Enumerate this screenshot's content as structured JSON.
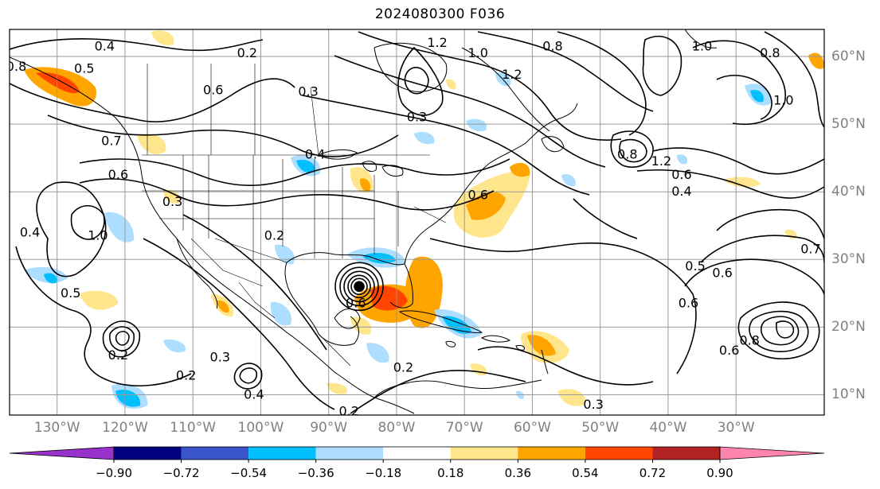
{
  "title": "2024080300 F036",
  "map": {
    "projection": "PlateCarree",
    "lon_range": [
      -137,
      -17
    ],
    "lat_range": [
      7,
      64
    ],
    "lon_ticks": [
      "130°W",
      "120°W",
      "110°W",
      "100°W",
      "90°W",
      "80°W",
      "70°W",
      "60°W",
      "50°W",
      "40°W",
      "30°W"
    ],
    "lat_ticks": [
      "10°N",
      "20°N",
      "30°N",
      "40°N",
      "50°N",
      "60°N"
    ],
    "gridlines": true,
    "coastlines": true,
    "state_borders": true,
    "hurricane_center": {
      "lon": -85.5,
      "lat": 26
    }
  },
  "contour_labels": [
    {
      "text": "0.4",
      "lon": -123,
      "lat": 61.5
    },
    {
      "text": "0.8",
      "lon": -136,
      "lat": 58.5
    },
    {
      "text": "0.5",
      "lon": -126,
      "lat": 58.2
    },
    {
      "text": "0.2",
      "lon": -102,
      "lat": 60.5
    },
    {
      "text": "0.6",
      "lon": -107,
      "lat": 55
    },
    {
      "text": "0.3",
      "lon": -93,
      "lat": 54.8
    },
    {
      "text": "0.7",
      "lon": -122,
      "lat": 47.5
    },
    {
      "text": "0.6",
      "lon": -121,
      "lat": 42.5
    },
    {
      "text": "0.3",
      "lon": -113,
      "lat": 38.5
    },
    {
      "text": "1.0",
      "lon": -124,
      "lat": 33.5
    },
    {
      "text": "0.4",
      "lon": -134,
      "lat": 34
    },
    {
      "text": "0.5",
      "lon": -128,
      "lat": 25
    },
    {
      "text": "0.2",
      "lon": -121,
      "lat": 15.8
    },
    {
      "text": "0.2",
      "lon": -111,
      "lat": 12.8
    },
    {
      "text": "0.3",
      "lon": -106,
      "lat": 15.5
    },
    {
      "text": "0.4",
      "lon": -101,
      "lat": 10
    },
    {
      "text": "0.2",
      "lon": -98,
      "lat": 33.5
    },
    {
      "text": "0.4",
      "lon": -92,
      "lat": 45.5
    },
    {
      "text": "0.6",
      "lon": -86,
      "lat": 23.5
    },
    {
      "text": "0.2",
      "lon": -79,
      "lat": 14
    },
    {
      "text": "0.2",
      "lon": -87,
      "lat": 7.5
    },
    {
      "text": "0.3",
      "lon": -51,
      "lat": 8.5
    },
    {
      "text": "0.6",
      "lon": -68,
      "lat": 39.5
    },
    {
      "text": "0.3",
      "lon": -77,
      "lat": 51
    },
    {
      "text": "1.2",
      "lon": -74,
      "lat": 62
    },
    {
      "text": "1.0",
      "lon": -68,
      "lat": 60.5
    },
    {
      "text": "1.2",
      "lon": -63,
      "lat": 57.3
    },
    {
      "text": "0.8",
      "lon": -57,
      "lat": 61.5
    },
    {
      "text": "0.8",
      "lon": -46,
      "lat": 45.5
    },
    {
      "text": "1.2",
      "lon": -41,
      "lat": 44.5
    },
    {
      "text": "0.6",
      "lon": -38,
      "lat": 42.5
    },
    {
      "text": "0.4",
      "lon": -38,
      "lat": 40
    },
    {
      "text": "1.0",
      "lon": -35,
      "lat": 61.5
    },
    {
      "text": "0.8",
      "lon": -25,
      "lat": 60.5
    },
    {
      "text": "1.0",
      "lon": -23,
      "lat": 53.5
    },
    {
      "text": "0.5",
      "lon": -36,
      "lat": 29
    },
    {
      "text": "0.6",
      "lon": -32,
      "lat": 28
    },
    {
      "text": "0.6",
      "lon": -37,
      "lat": 23.5
    },
    {
      "text": "0.8",
      "lon": -28,
      "lat": 18
    },
    {
      "text": "0.6",
      "lon": -31,
      "lat": 16.5
    },
    {
      "text": "0.7",
      "lon": -19,
      "lat": 31.5
    }
  ],
  "colorbar": {
    "ticks": [
      "−0.90",
      "−0.72",
      "−0.54",
      "−0.36",
      "−0.18",
      "0.18",
      "0.36",
      "0.54",
      "0.72",
      "0.90"
    ],
    "colors": [
      "#9932CC",
      "#000080",
      "#3A55C8",
      "#00BFFF",
      "#ADDEFF",
      "#FFFFFF",
      "#FFE68C",
      "#FFA500",
      "#FF4500",
      "#B22222",
      "#FF85AD"
    ],
    "extend": "both"
  }
}
